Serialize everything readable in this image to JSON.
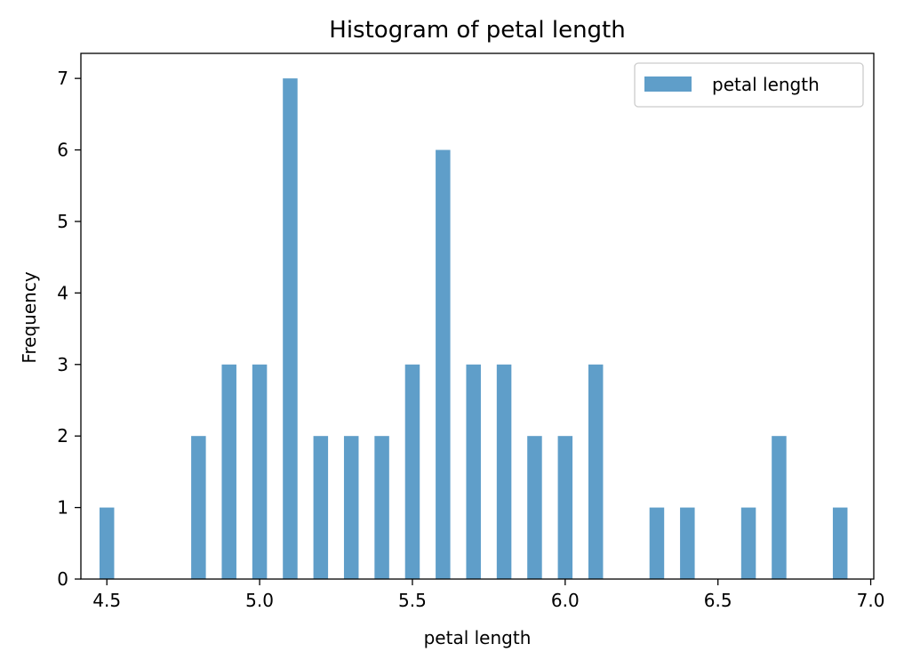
{
  "chart_data": {
    "type": "bar",
    "title": "Histogram of petal length",
    "xlabel": "petal length",
    "ylabel": "Frequency",
    "xlim": [
      4.415,
      7.01
    ],
    "ylim": [
      0,
      7.35
    ],
    "x_ticks": [
      "4.5",
      "5.0",
      "5.5",
      "6.0",
      "6.5",
      "7.0"
    ],
    "y_ticks": [
      "0",
      "1",
      "2",
      "3",
      "4",
      "5",
      "6",
      "7"
    ],
    "bar_width": 0.048,
    "legend": {
      "label": "petal length",
      "position": "top-right"
    },
    "color": "#5f9ec9",
    "series": [
      {
        "name": "petal length",
        "x": [
          4.5,
          4.8,
          4.9,
          5.0,
          5.1,
          5.2,
          5.3,
          5.4,
          5.5,
          5.6,
          5.7,
          5.8,
          5.9,
          6.0,
          6.1,
          6.3,
          6.4,
          6.6,
          6.7,
          6.9
        ],
        "values": [
          1,
          2,
          3,
          3,
          7,
          2,
          2,
          2,
          3,
          6,
          3,
          3,
          2,
          2,
          3,
          1,
          1,
          1,
          2,
          1
        ]
      }
    ]
  }
}
